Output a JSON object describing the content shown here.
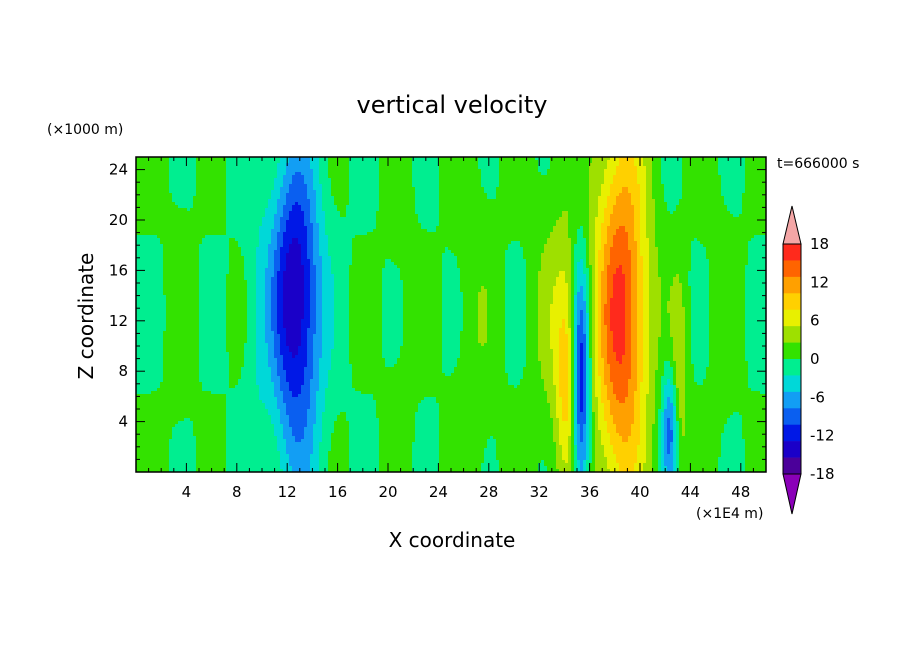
{
  "chart_data": {
    "type": "heatmap",
    "title": "vertical velocity",
    "time_label": "t=666000 s",
    "xlabel": "X coordinate",
    "ylabel": "Z coordinate",
    "x_unit": "(×1E4 m)",
    "y_unit": "(×1000 m)",
    "xlim": [
      0,
      50
    ],
    "ylim": [
      0,
      25
    ],
    "x_ticks": [
      4,
      8,
      12,
      16,
      20,
      24,
      28,
      32,
      36,
      40,
      44,
      48
    ],
    "y_ticks": [
      4,
      8,
      12,
      16,
      20,
      24
    ],
    "colorbar": {
      "levels": [
        -21,
        -18,
        -15,
        -12,
        -9,
        -6,
        -3,
        0,
        3,
        6,
        9,
        12,
        15,
        18,
        21
      ],
      "tick_labels": [
        -18,
        -12,
        -6,
        0,
        6,
        12,
        18
      ],
      "colors": [
        "#8a00b8",
        "#4b009a",
        "#1a00c8",
        "#0018e6",
        "#0a5ff0",
        "#129ef4",
        "#00d8d8",
        "#00ee90",
        "#33e200",
        "#9ee000",
        "#e8f000",
        "#ffd000",
        "#ffa000",
        "#ff6400",
        "#ff2a1c",
        "#f4a6a6"
      ]
    },
    "features": [
      {
        "x": 12.8,
        "z": 12,
        "sx": 1.4,
        "sz": 9.5,
        "value": -12
      },
      {
        "x": 12.4,
        "z": 15,
        "sx": 1.3,
        "sz": 6.0,
        "value": -7
      },
      {
        "x": 34.2,
        "z": 7.5,
        "sx": 0.6,
        "sz": 6.0,
        "value": 9
      },
      {
        "x": 35.3,
        "z": 7.0,
        "sx": 0.5,
        "sz": 6.5,
        "value": -17
      },
      {
        "x": 33.2,
        "z": 12,
        "sx": 1.2,
        "sz": 9.0,
        "value": 4
      },
      {
        "x": 38.5,
        "z": 12.5,
        "sx": 1.5,
        "sz": 10.5,
        "value": 19
      },
      {
        "x": 42.4,
        "z": 3.5,
        "sx": 0.45,
        "sz": 3.5,
        "value": -11
      },
      {
        "x": 43.1,
        "z": 7.0,
        "sx": 0.5,
        "sz": 6.0,
        "value": 6
      },
      {
        "x": 9.5,
        "z": 10,
        "sx": 0.7,
        "sz": 12,
        "value": -2
      },
      {
        "x": 3.5,
        "z": 12,
        "sx": 0.8,
        "sz": 14,
        "value": 1
      },
      {
        "x": 21,
        "z": 12,
        "sx": 1.0,
        "sz": 14,
        "value": 1
      },
      {
        "x": 27,
        "z": 10,
        "sx": 1.2,
        "sz": 14,
        "value": 2
      },
      {
        "x": 46.5,
        "z": 12,
        "sx": 1.0,
        "sz": 15,
        "value": 1
      }
    ]
  }
}
